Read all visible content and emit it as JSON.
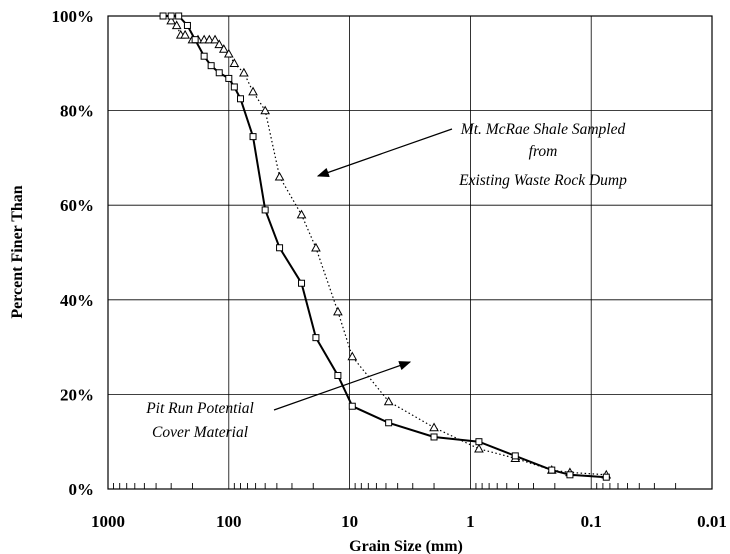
{
  "chart_data": {
    "type": "line",
    "title": "",
    "xlabel": "Grain Size (mm)",
    "ylabel": "Percent Finer Than",
    "x_scale": "log",
    "x_reversed": true,
    "xlim": [
      1000,
      0.01
    ],
    "ylim": [
      0,
      100
    ],
    "grid": true,
    "legend": "none",
    "x_ticks": [
      "1000",
      "100",
      "10",
      "1",
      "0.1",
      "0.01"
    ],
    "y_ticks": [
      "0%",
      "20%",
      "40%",
      "60%",
      "80%",
      "100%"
    ],
    "series": [
      {
        "name": "Mt. McRae Shale Sampled from Existing Waste Rock Dump",
        "marker": "triangle",
        "line_style": "dotted",
        "x": [
          300,
          270,
          250,
          230,
          200,
          180,
          160,
          145,
          130,
          120,
          110,
          100,
          90,
          75,
          63,
          50,
          38,
          25,
          19,
          12.5,
          9.5,
          4.75,
          2.0,
          0.85,
          0.425,
          0.212,
          0.15,
          0.075
        ],
        "y": [
          99.0,
          98.0,
          96.0,
          96.0,
          95.0,
          95.0,
          95.0,
          95.0,
          95.0,
          94.0,
          93.0,
          92.0,
          90.0,
          88.0,
          84.0,
          80.0,
          66.0,
          58.0,
          51.0,
          37.5,
          28.0,
          18.5,
          13.0,
          8.5,
          6.5,
          4.0,
          3.5,
          3.0
        ]
      },
      {
        "name": "Pit Run Potential Cover Material",
        "marker": "square",
        "line_style": "solid",
        "x": [
          350,
          300,
          260,
          220,
          190,
          160,
          140,
          120,
          100,
          90,
          80,
          63,
          50,
          38,
          25,
          19,
          12.5,
          9.5,
          4.75,
          2.0,
          0.85,
          0.425,
          0.212,
          0.15,
          0.075
        ],
        "y": [
          100.0,
          100.0,
          100.0,
          98.0,
          95.0,
          91.5,
          89.5,
          88.0,
          86.8,
          85.0,
          82.5,
          74.5,
          59.0,
          51.0,
          43.5,
          32.0,
          24.0,
          17.5,
          14.0,
          11.0,
          10.0,
          7.0,
          4.0,
          3.0,
          2.5
        ]
      }
    ],
    "annotations": [
      {
        "lines": [
          "Mt. McRae Shale Sampled",
          "from",
          "Existing Waste Rock Dump"
        ]
      },
      {
        "lines": [
          "Pit Run Potential",
          "Cover Material"
        ]
      }
    ]
  }
}
